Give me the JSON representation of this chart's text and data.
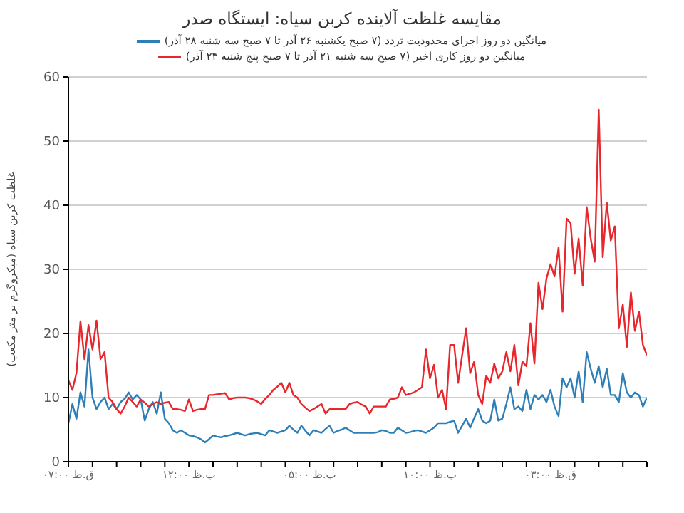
{
  "chart_data": {
    "type": "line",
    "title": "مقایسه غلظت آلاینده کربن سیاه: ایستگاه صدر",
    "ylabel": "غلظت کربن سیاه (میکروگرم بر متر مکعب)",
    "legend": "top",
    "grid": "y",
    "marker": "none",
    "line_style": "solid",
    "categories": [
      "ق.ظ ۰۷:۰۰",
      null,
      null,
      null,
      null,
      null,
      null,
      null,
      null,
      null,
      null,
      null,
      null,
      null,
      null,
      null,
      null,
      null,
      null,
      null,
      null,
      null,
      null,
      null,
      null,
      null,
      null,
      null,
      null,
      null,
      "ب.ظ ۱۲:۰۰",
      null,
      null,
      null,
      null,
      null,
      null,
      null,
      null,
      null,
      null,
      null,
      null,
      null,
      null,
      null,
      null,
      null,
      null,
      null,
      null,
      null,
      null,
      null,
      null,
      null,
      null,
      null,
      null,
      null,
      "ب.ظ ۰۵:۰۰",
      null,
      null,
      null,
      null,
      null,
      null,
      null,
      null,
      null,
      null,
      null,
      null,
      null,
      null,
      null,
      null,
      null,
      null,
      null,
      null,
      null,
      null,
      null,
      null,
      null,
      null,
      null,
      null,
      null,
      "ب.ظ ۱۰:۰۰",
      null,
      null,
      null,
      null,
      null,
      null,
      null,
      null,
      null,
      null,
      null,
      null,
      null,
      null,
      null,
      null,
      null,
      null,
      null,
      null,
      null,
      null,
      null,
      null,
      null,
      null,
      null,
      null,
      null,
      "ق.ظ ۰۳:۰۰",
      null,
      null,
      null,
      null,
      null,
      null,
      null,
      null,
      null,
      null,
      null,
      null,
      null,
      null,
      null,
      null,
      null,
      null,
      null,
      null,
      null,
      null,
      null,
      null
    ],
    "ylim": [
      0,
      60
    ],
    "yticks": [
      0,
      10,
      20,
      30,
      40,
      50,
      60
    ],
    "series": [
      {
        "name": "میانگین دو روز اجرای محدودیت تردد (۷ صبح یکشنبه ۲۶ آذر تا ۷ صبح سه شنبه ۲۸ آذر)",
        "color": "#2e7fb8",
        "values": [
          6,
          9,
          6.7,
          10.8,
          8.6,
          17.5,
          10,
          8.2,
          9.3,
          10,
          8.2,
          9,
          8.2,
          9.3,
          9.8,
          10.8,
          9.7,
          10.4,
          9.7,
          6.4,
          8.2,
          9.3,
          7.5,
          10.8,
          6.7,
          6,
          4.9,
          4.5,
          4.9,
          4.5,
          4.1,
          4,
          3.8,
          3.5,
          3,
          3.5,
          4.1,
          3.9,
          3.8,
          4,
          4.1,
          4.3,
          4.5,
          4.3,
          4.1,
          4.3,
          4.4,
          4.5,
          4.3,
          4.1,
          4.9,
          4.7,
          4.5,
          4.7,
          4.9,
          5.6,
          5,
          4.5,
          5.6,
          4.8,
          4.1,
          4.9,
          4.7,
          4.5,
          5.1,
          5.6,
          4.5,
          4.8,
          5,
          5.3,
          4.9,
          4.5,
          4.5,
          4.5,
          4.5,
          4.5,
          4.5,
          4.6,
          4.9,
          4.8,
          4.5,
          4.5,
          5.3,
          4.9,
          4.5,
          4.6,
          4.8,
          4.9,
          4.7,
          4.5,
          4.9,
          5.3,
          6,
          6,
          6,
          6.2,
          6.4,
          4.5,
          5.6,
          6.7,
          5.3,
          6.8,
          8.2,
          6.4,
          6,
          6.4,
          9.7,
          6.4,
          6.7,
          9,
          11.6,
          8.2,
          8.6,
          7.9,
          11.2,
          8.2,
          10.4,
          9.7,
          10.4,
          9.3,
          11.2,
          8.6,
          7.1,
          13,
          11.6,
          13,
          10,
          14.1,
          9.3,
          17.1,
          14.5,
          12.3,
          14.9,
          11.6,
          14.5,
          10.4,
          10.4,
          9.3,
          13.8,
          10.8,
          10,
          10.8,
          10.4,
          8.6,
          10
        ]
      },
      {
        "name": "میانگین دو روز کاری اخیر (۷ صبح سه شنبه ۲۱ آذر تا ۷ صبح پنج شنبه ۲۳ آذر)",
        "color": "#e8262c",
        "values": [
          12.7,
          11.2,
          13.8,
          21.9,
          16,
          21.3,
          17.5,
          22,
          16,
          17.1,
          10,
          9.3,
          8.2,
          7.5,
          8.6,
          10,
          9.3,
          8.6,
          9.7,
          9.2,
          8.6,
          9,
          9.3,
          9,
          9.2,
          9.3,
          8.2,
          8.2,
          8.1,
          7.9,
          9.7,
          7.9,
          8.1,
          8.2,
          8.2,
          10.4,
          10.4,
          10.5,
          10.6,
          10.7,
          9.7,
          9.9,
          10,
          10,
          10,
          9.9,
          9.7,
          9.4,
          9,
          9.8,
          10.4,
          11.2,
          11.7,
          12.3,
          10.8,
          12.3,
          10.4,
          10,
          9,
          8.4,
          7.9,
          8.2,
          8.6,
          9,
          7.5,
          8.2,
          8.2,
          8.2,
          8.2,
          8.2,
          9,
          9.2,
          9.3,
          8.9,
          8.6,
          7.5,
          8.6,
          8.6,
          8.6,
          8.6,
          9.7,
          9.8,
          10,
          11.6,
          10.4,
          10.6,
          10.8,
          11.2,
          11.6,
          17.5,
          13,
          15.1,
          10,
          11.2,
          8.2,
          18.2,
          18.2,
          12.3,
          16.6,
          20.8,
          13.8,
          15.6,
          10.4,
          9,
          13.4,
          12.3,
          15.3,
          13,
          14.1,
          17.1,
          14.1,
          18.2,
          11.9,
          15.6,
          14.9,
          21.6,
          15.3,
          27.9,
          23.8,
          28.6,
          30.8,
          28.9,
          33.4,
          23.4,
          37.9,
          37.2,
          29.3,
          34.8,
          27.5,
          39.7,
          34.8,
          31.2,
          54.9,
          31.9,
          40.4,
          34.5,
          36.7,
          20.8,
          24.5,
          17.9,
          26.4,
          20.4,
          23.4,
          18.2,
          16.6
        ]
      }
    ]
  }
}
